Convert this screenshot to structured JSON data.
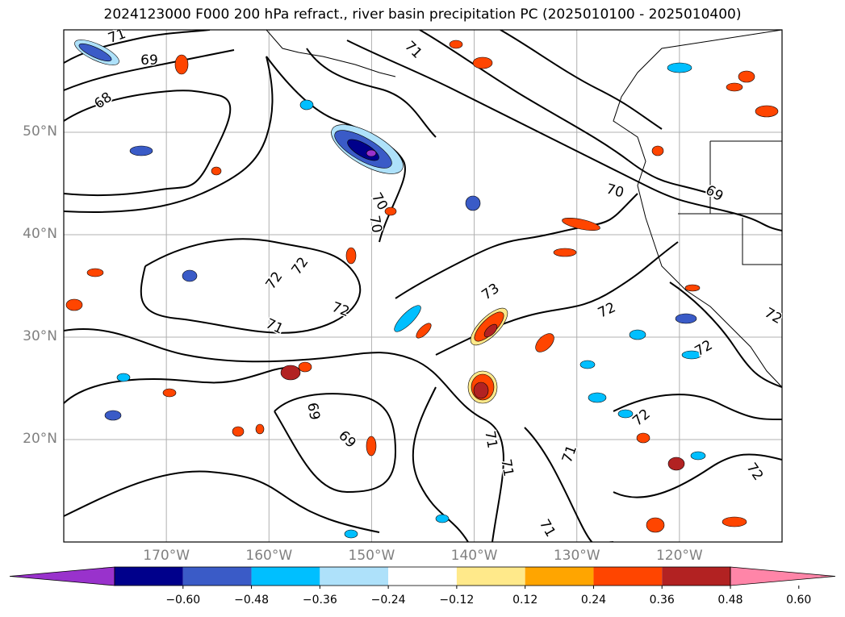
{
  "title": "2024123000 F000 200 hPa refract., river basin precipitation PC (2025010100 - 2025010400)",
  "axes": {
    "lat_labels": [
      "50°N",
      "40°N",
      "30°N",
      "20°N"
    ],
    "lon_labels": [
      "170°W",
      "160°W",
      "150°W",
      "140°W",
      "130°W",
      "120°W"
    ],
    "lat_values": [
      50,
      40,
      30,
      20
    ],
    "lon_values": [
      -170,
      -160,
      -150,
      -140,
      -130,
      -120
    ],
    "lon_range": [
      -180,
      -110
    ],
    "lat_range": [
      10,
      60
    ],
    "grid": true,
    "grid_color": "#b0b0b0"
  },
  "contour_labels": [
    "71",
    "69",
    "68",
    "71",
    "70",
    "70",
    "69",
    "70",
    "72",
    "72",
    "73",
    "72",
    "72",
    "71",
    "72",
    "69",
    "69",
    "71",
    "71",
    "71",
    "71",
    "72",
    "72",
    "72"
  ],
  "colorbar": {
    "ticks": [
      "−0.60",
      "−0.48",
      "−0.36",
      "−0.24",
      "−0.12",
      "0.12",
      "0.24",
      "0.36",
      "0.48",
      "0.60"
    ],
    "colors": [
      "#9932cc",
      "#00008b",
      "#3a5bc7",
      "#00bfff",
      "#aee1fa",
      "#ffffff",
      "#ffe98a",
      "#ffa500",
      "#ff4500",
      "#b22222",
      "#ff85a8"
    ],
    "extend": "both"
  }
}
